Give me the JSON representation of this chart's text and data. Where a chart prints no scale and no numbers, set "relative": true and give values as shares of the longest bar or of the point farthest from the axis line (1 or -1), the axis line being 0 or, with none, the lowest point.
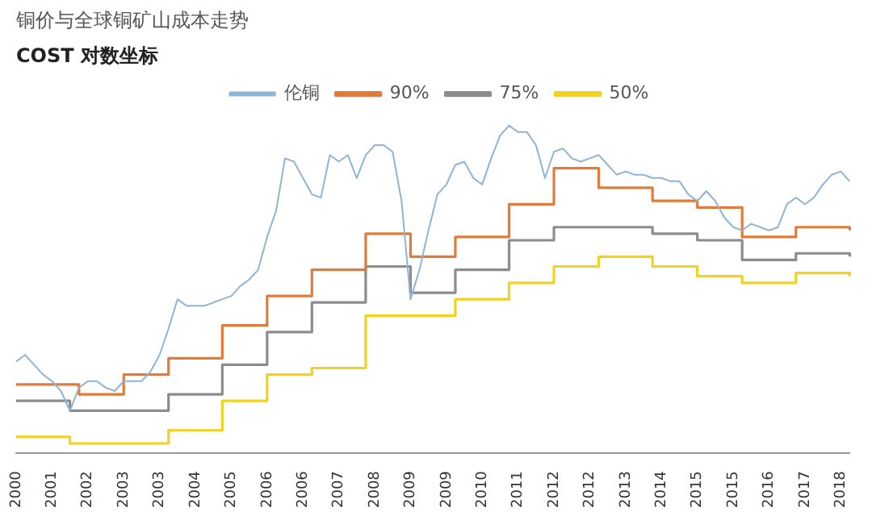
{
  "chart_data": {
    "type": "line",
    "title": "铜价与全球铜矿山成本走势",
    "subtitle": "COST 对数坐标",
    "relative": true,
    "legend": "top",
    "grid": false,
    "marker": "none",
    "categories": [
      "2000",
      null,
      null,
      null,
      "2001",
      null,
      null,
      null,
      "2002",
      null,
      null,
      null,
      "2003",
      null,
      null,
      null,
      "2003",
      null,
      null,
      null,
      "2004",
      null,
      null,
      null,
      "2005",
      null,
      null,
      null,
      "2006",
      null,
      null,
      null,
      "2006",
      null,
      null,
      null,
      "2007",
      null,
      null,
      null,
      "2008",
      null,
      null,
      null,
      "2009",
      null,
      null,
      null,
      "2009",
      null,
      null,
      null,
      "2010",
      null,
      null,
      null,
      "2011",
      null,
      null,
      null,
      "2012",
      null,
      null,
      null,
      "2012",
      null,
      null,
      null,
      "2013",
      null,
      null,
      null,
      "2014",
      null,
      null,
      null,
      "2015",
      null,
      null,
      null,
      "2015",
      null,
      null,
      null,
      "2016",
      null,
      null,
      null,
      "2017",
      null,
      null,
      null,
      "2018",
      null
    ],
    "series": [
      {
        "name": "伦铜",
        "type": "line",
        "color": "#8fb4d4",
        "values": [
          0.28,
          0.3,
          0.27,
          0.24,
          0.22,
          0.19,
          0.13,
          0.2,
          0.22,
          0.22,
          0.2,
          0.19,
          0.22,
          0.22,
          0.22,
          0.25,
          0.3,
          0.38,
          0.47,
          0.45,
          0.45,
          0.45,
          0.46,
          0.47,
          0.48,
          0.51,
          0.53,
          0.56,
          0.66,
          0.74,
          0.9,
          0.89,
          0.84,
          0.79,
          0.78,
          0.91,
          0.89,
          0.91,
          0.84,
          0.91,
          0.94,
          0.94,
          0.92,
          0.77,
          0.47,
          0.56,
          0.68,
          0.79,
          0.82,
          0.88,
          0.89,
          0.84,
          0.82,
          0.9,
          0.97,
          1.0,
          0.98,
          0.98,
          0.94,
          0.84,
          0.92,
          0.93,
          0.9,
          0.89,
          0.9,
          0.91,
          0.88,
          0.85,
          0.86,
          0.85,
          0.85,
          0.84,
          0.84,
          0.83,
          0.83,
          0.79,
          0.77,
          0.8,
          0.77,
          0.72,
          0.69,
          0.68,
          0.7,
          0.69,
          0.68,
          0.69,
          0.76,
          0.78,
          0.76,
          0.78,
          0.82,
          0.85,
          0.86,
          0.83
        ]
      },
      {
        "name": "90%",
        "type": "step",
        "color": "#e07b39",
        "values": [
          0.21,
          0.21,
          0.21,
          0.21,
          0.21,
          0.21,
          0.21,
          0.18,
          0.18,
          0.18,
          0.18,
          0.18,
          0.24,
          0.24,
          0.24,
          0.24,
          0.24,
          0.29,
          0.29,
          0.29,
          0.29,
          0.29,
          0.29,
          0.39,
          0.39,
          0.39,
          0.39,
          0.39,
          0.48,
          0.48,
          0.48,
          0.48,
          0.48,
          0.56,
          0.56,
          0.56,
          0.56,
          0.56,
          0.56,
          0.67,
          0.67,
          0.67,
          0.67,
          0.67,
          0.6,
          0.6,
          0.6,
          0.6,
          0.6,
          0.66,
          0.66,
          0.66,
          0.66,
          0.66,
          0.66,
          0.76,
          0.76,
          0.76,
          0.76,
          0.76,
          0.87,
          0.87,
          0.87,
          0.87,
          0.87,
          0.81,
          0.81,
          0.81,
          0.81,
          0.81,
          0.81,
          0.77,
          0.77,
          0.77,
          0.77,
          0.77,
          0.75,
          0.75,
          0.75,
          0.75,
          0.75,
          0.66,
          0.66,
          0.66,
          0.66,
          0.66,
          0.66,
          0.69,
          0.69,
          0.69,
          0.69,
          0.69,
          0.69,
          0.68
        ]
      },
      {
        "name": "75%",
        "type": "step",
        "color": "#8c8c8c",
        "values": [
          0.16,
          0.16,
          0.16,
          0.16,
          0.16,
          0.16,
          0.13,
          0.13,
          0.13,
          0.13,
          0.13,
          0.13,
          0.13,
          0.13,
          0.13,
          0.13,
          0.13,
          0.18,
          0.18,
          0.18,
          0.18,
          0.18,
          0.18,
          0.27,
          0.27,
          0.27,
          0.27,
          0.27,
          0.37,
          0.37,
          0.37,
          0.37,
          0.37,
          0.46,
          0.46,
          0.46,
          0.46,
          0.46,
          0.46,
          0.57,
          0.57,
          0.57,
          0.57,
          0.57,
          0.49,
          0.49,
          0.49,
          0.49,
          0.49,
          0.56,
          0.56,
          0.56,
          0.56,
          0.56,
          0.56,
          0.65,
          0.65,
          0.65,
          0.65,
          0.65,
          0.69,
          0.69,
          0.69,
          0.69,
          0.69,
          0.69,
          0.69,
          0.69,
          0.69,
          0.69,
          0.69,
          0.67,
          0.67,
          0.67,
          0.67,
          0.67,
          0.65,
          0.65,
          0.65,
          0.65,
          0.65,
          0.59,
          0.59,
          0.59,
          0.59,
          0.59,
          0.59,
          0.61,
          0.61,
          0.61,
          0.61,
          0.61,
          0.61,
          0.6
        ]
      },
      {
        "name": "50%",
        "type": "step",
        "color": "#f2d21b",
        "values": [
          0.05,
          0.05,
          0.05,
          0.05,
          0.05,
          0.05,
          0.03,
          0.03,
          0.03,
          0.03,
          0.03,
          0.03,
          0.03,
          0.03,
          0.03,
          0.03,
          0.03,
          0.07,
          0.07,
          0.07,
          0.07,
          0.07,
          0.07,
          0.16,
          0.16,
          0.16,
          0.16,
          0.16,
          0.24,
          0.24,
          0.24,
          0.24,
          0.24,
          0.26,
          0.26,
          0.26,
          0.26,
          0.26,
          0.26,
          0.42,
          0.42,
          0.42,
          0.42,
          0.42,
          0.42,
          0.42,
          0.42,
          0.42,
          0.42,
          0.47,
          0.47,
          0.47,
          0.47,
          0.47,
          0.47,
          0.52,
          0.52,
          0.52,
          0.52,
          0.52,
          0.57,
          0.57,
          0.57,
          0.57,
          0.57,
          0.6,
          0.6,
          0.6,
          0.6,
          0.6,
          0.6,
          0.57,
          0.57,
          0.57,
          0.57,
          0.57,
          0.54,
          0.54,
          0.54,
          0.54,
          0.54,
          0.52,
          0.52,
          0.52,
          0.52,
          0.52,
          0.52,
          0.55,
          0.55,
          0.55,
          0.55,
          0.55,
          0.55,
          0.54
        ]
      }
    ]
  }
}
